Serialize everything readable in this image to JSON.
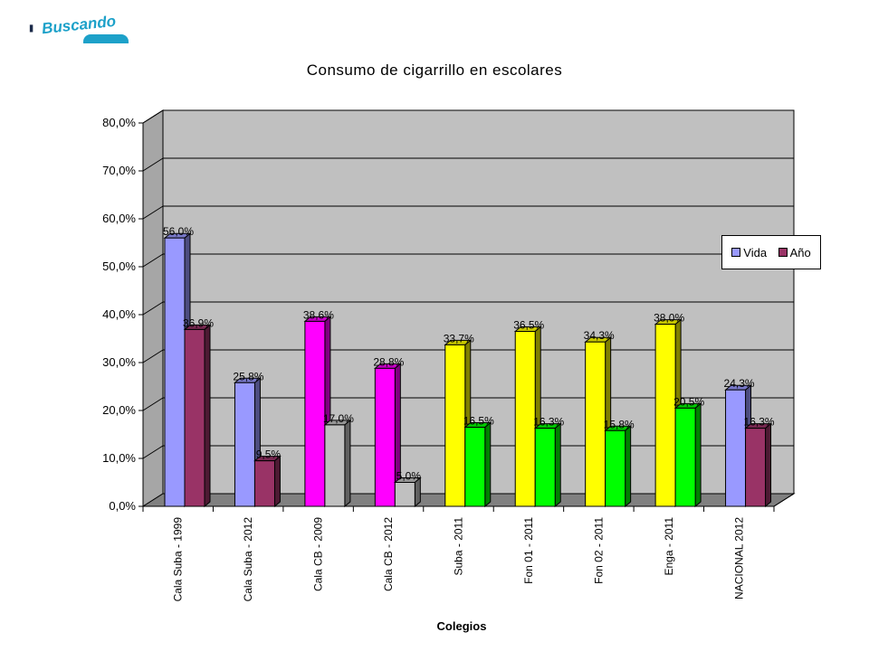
{
  "logo": {
    "text": "Buscando"
  },
  "chart_data": {
    "type": "bar",
    "title": "Consumo de cigarrillo en escolares",
    "xlabel": "Colegios",
    "ylabel": "",
    "ylim": [
      0,
      80
    ],
    "yticks": [
      "0,0%",
      "10,0%",
      "20,0%",
      "30,0%",
      "40,0%",
      "50,0%",
      "60,0%",
      "70,0%",
      "80,0%"
    ],
    "grid": true,
    "legend_position": "right",
    "categories": [
      "Cala Suba - 1999",
      "Cala Suba - 2012",
      "Cala CB - 2009",
      "Cala CB - 2012",
      "Suba - 2011",
      "Fon 01 - 2011",
      "Fon 02 - 2011",
      "Enga - 2011",
      "NACIONAL 2012"
    ],
    "series": [
      {
        "name": "Vida",
        "values": [
          56.0,
          25.8,
          38.6,
          28.8,
          33.7,
          36.5,
          34.3,
          38.0,
          24.3
        ],
        "labels": [
          "56,0%",
          "25,8%",
          "38,6%",
          "28,8%",
          "33,7%",
          "36,5%",
          "34,3%",
          "38,0%",
          "24,3%"
        ],
        "colors": [
          "#9999ff",
          "#9999ff",
          "#ff00ff",
          "#ff00ff",
          "#ffff00",
          "#ffff00",
          "#ffff00",
          "#ffff00",
          "#9999ff"
        ]
      },
      {
        "name": "Año",
        "values": [
          36.9,
          9.5,
          17.0,
          5.0,
          16.5,
          16.3,
          15.8,
          20.5,
          16.3
        ],
        "labels": [
          "36,9%",
          "9,5%",
          "17,0%",
          "5,0%",
          "16,5%",
          "16,3%",
          "15,8%",
          "20,5%",
          "16,3%"
        ],
        "colors": [
          "#993366",
          "#993366",
          "#c0c0c0",
          "#c0c0c0",
          "#00ff00",
          "#00ff00",
          "#00ff00",
          "#00ff00",
          "#993366"
        ]
      }
    ],
    "legend_colors": {
      "Vida": "#9999ff",
      "Año": "#993366"
    },
    "wall_color": "#c0c0c0"
  }
}
